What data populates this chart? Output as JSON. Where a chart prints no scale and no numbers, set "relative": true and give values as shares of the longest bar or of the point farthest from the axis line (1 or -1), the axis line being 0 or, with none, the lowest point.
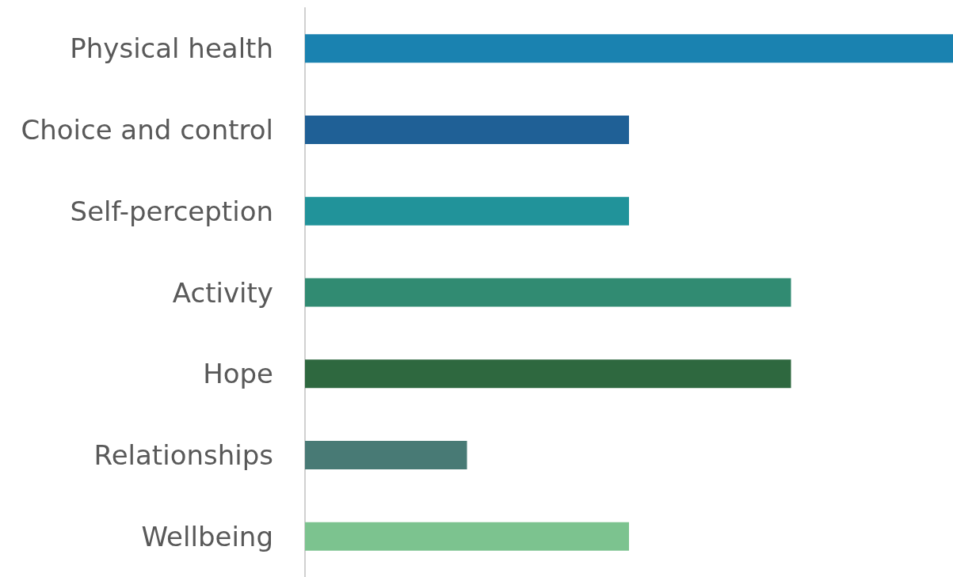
{
  "chart_data": {
    "type": "bar",
    "orientation": "horizontal",
    "relative": true,
    "categories": [
      "Physical health",
      "Choice and control",
      "Self-perception",
      "Activity",
      "Hope",
      "Relationships",
      "Wellbeing"
    ],
    "values": [
      1,
      0.5,
      0.5,
      0.75,
      0.75,
      0.25,
      0.5
    ],
    "colors": [
      "#1a82b0",
      "#1f6096",
      "#21939a",
      "#318b72",
      "#2e683f",
      "#487a75",
      "#7cc38f"
    ]
  }
}
